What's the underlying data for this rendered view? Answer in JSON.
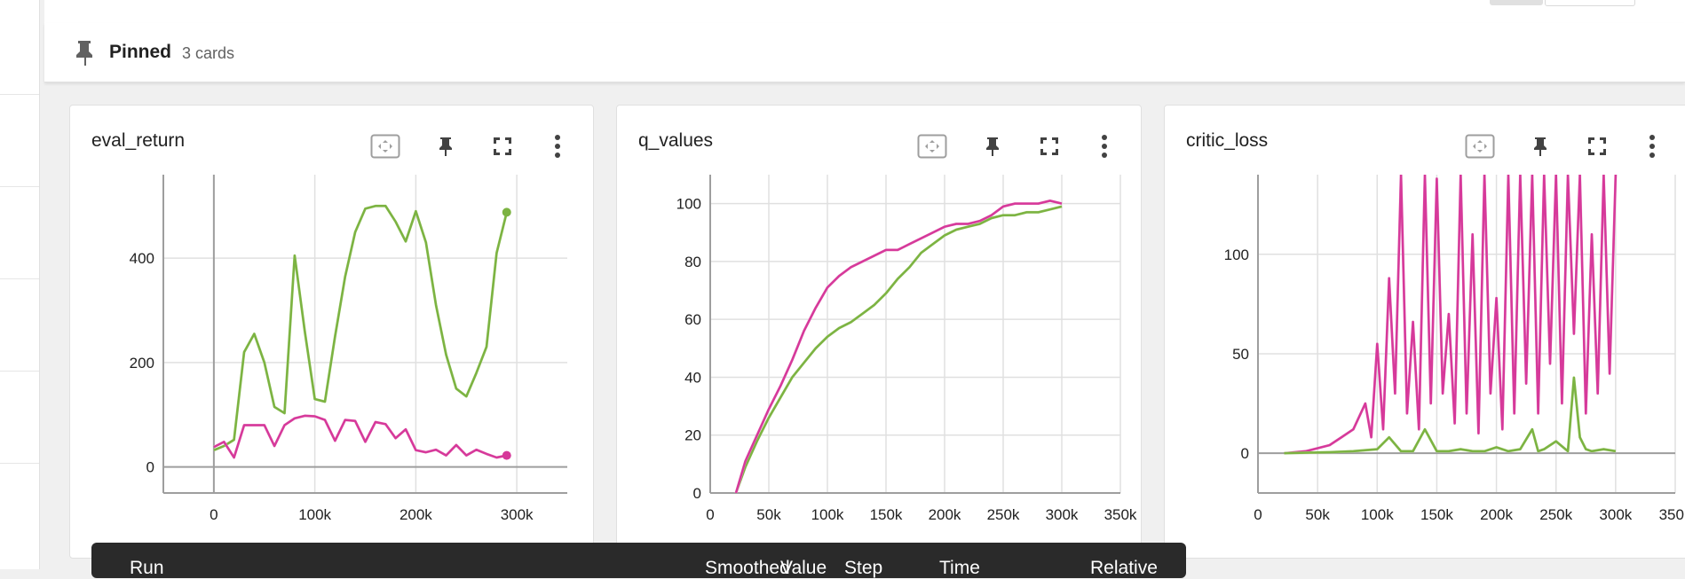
{
  "pinned": {
    "title": "Pinned",
    "count": "3 cards"
  },
  "tooltip": {
    "col_run": "Run",
    "col_smoothed": "Smoothed",
    "col_value": "Value",
    "col_step": "Step",
    "col_time": "Time",
    "col_relative": "Relative"
  },
  "colors": {
    "green": "#7cb342",
    "green_light": "#c5e1a5",
    "pink": "#d6399a",
    "pink_light": "#f0b3d8"
  },
  "cards": [
    {
      "title": "eval_return"
    },
    {
      "title": "q_values"
    },
    {
      "title": "critic_loss"
    }
  ],
  "chart_data": [
    {
      "type": "line",
      "title": "eval_return",
      "xticks": [
        "0",
        "100k",
        "200k",
        "300k"
      ],
      "yticks": [
        "0",
        "200",
        "400"
      ],
      "xlim": [
        -50000,
        350000
      ],
      "ylim": [
        -50,
        560
      ],
      "series": [
        {
          "color": "green",
          "x": [
            0,
            10000,
            20000,
            30000,
            40000,
            50000,
            60000,
            70000,
            80000,
            90000,
            100000,
            110000,
            120000,
            130000,
            140000,
            150000,
            160000,
            170000,
            180000,
            190000,
            200000,
            210000,
            220000,
            230000,
            240000,
            250000,
            260000,
            270000,
            280000,
            290000
          ],
          "y": [
            32,
            40,
            52,
            220,
            255,
            200,
            115,
            103,
            405,
            260,
            130,
            125,
            250,
            365,
            450,
            495,
            500,
            500,
            470,
            432,
            490,
            430,
            310,
            215,
            150,
            135,
            180,
            230,
            410,
            488
          ]
        },
        {
          "color": "pink",
          "x": [
            0,
            10000,
            20000,
            30000,
            40000,
            50000,
            60000,
            70000,
            80000,
            90000,
            100000,
            110000,
            120000,
            130000,
            140000,
            150000,
            160000,
            170000,
            180000,
            190000,
            200000,
            210000,
            220000,
            230000,
            240000,
            250000,
            260000,
            270000,
            280000,
            290000
          ],
          "y": [
            38,
            48,
            18,
            80,
            80,
            80,
            40,
            80,
            93,
            98,
            97,
            90,
            50,
            90,
            88,
            48,
            86,
            82,
            55,
            72,
            32,
            28,
            33,
            22,
            42,
            22,
            33,
            25,
            18,
            22
          ]
        }
      ]
    },
    {
      "type": "line",
      "title": "q_values",
      "xticks": [
        "0",
        "50k",
        "100k",
        "150k",
        "200k",
        "250k",
        "300k",
        "350k"
      ],
      "yticks": [
        "0",
        "20",
        "40",
        "60",
        "80",
        "100"
      ],
      "xlim": [
        0,
        350000
      ],
      "ylim": [
        0,
        110
      ],
      "series": [
        {
          "color": "green",
          "x": [
            22000,
            30000,
            40000,
            50000,
            60000,
            70000,
            80000,
            90000,
            100000,
            110000,
            120000,
            130000,
            140000,
            150000,
            160000,
            170000,
            180000,
            190000,
            200000,
            210000,
            220000,
            230000,
            240000,
            250000,
            260000,
            270000,
            280000,
            290000,
            300000
          ],
          "y": [
            0,
            9,
            18,
            26,
            33,
            40,
            45,
            50,
            54,
            57,
            59,
            62,
            65,
            69,
            74,
            78,
            83,
            86,
            89,
            91,
            92,
            93,
            95,
            96,
            96,
            97,
            97,
            98,
            99
          ]
        },
        {
          "color": "pink",
          "x": [
            22000,
            30000,
            40000,
            50000,
            60000,
            70000,
            80000,
            90000,
            100000,
            110000,
            120000,
            130000,
            140000,
            150000,
            160000,
            170000,
            180000,
            190000,
            200000,
            210000,
            220000,
            230000,
            240000,
            250000,
            260000,
            270000,
            280000,
            290000,
            300000
          ],
          "y": [
            0,
            11,
            20,
            29,
            37,
            46,
            56,
            64,
            71,
            75,
            78,
            80,
            82,
            84,
            84,
            86,
            88,
            90,
            92,
            93,
            93,
            94,
            96,
            99,
            100,
            100,
            100,
            101,
            100
          ]
        }
      ]
    },
    {
      "type": "line",
      "title": "critic_loss",
      "xticks": [
        "0",
        "50k",
        "100k",
        "150k",
        "200k",
        "250k",
        "300k",
        "350k"
      ],
      "yticks": [
        "0",
        "50",
        "100"
      ],
      "xlim": [
        0,
        350000
      ],
      "ylim": [
        -20,
        140
      ],
      "series": [
        {
          "color": "pink",
          "x": [
            22000,
            40000,
            60000,
            70000,
            80000,
            90000,
            95000,
            100000,
            105000,
            110000,
            115000,
            120000,
            125000,
            130000,
            135000,
            140000,
            145000,
            150000,
            155000,
            160000,
            165000,
            170000,
            175000,
            180000,
            185000,
            190000,
            195000,
            200000,
            205000,
            210000,
            215000,
            220000,
            225000,
            230000,
            235000,
            240000,
            245000,
            250000,
            255000,
            260000,
            265000,
            270000,
            275000,
            280000,
            285000,
            290000,
            295000,
            300000
          ],
          "y": [
            0,
            1,
            4,
            8,
            12,
            25,
            8,
            55,
            12,
            88,
            30,
            140,
            20,
            66,
            12,
            140,
            25,
            138,
            30,
            70,
            15,
            140,
            20,
            110,
            10,
            140,
            30,
            78,
            12,
            140,
            20,
            140,
            35,
            140,
            20,
            140,
            45,
            140,
            25,
            140,
            60,
            140,
            20,
            110,
            30,
            140,
            40,
            140
          ]
        },
        {
          "color": "green",
          "x": [
            22000,
            60000,
            80000,
            100000,
            110000,
            120000,
            130000,
            140000,
            150000,
            160000,
            170000,
            180000,
            190000,
            200000,
            210000,
            220000,
            230000,
            235000,
            240000,
            250000,
            260000,
            265000,
            270000,
            275000,
            280000,
            290000,
            300000
          ],
          "y": [
            0,
            0.5,
            1,
            2,
            8,
            1,
            1,
            12,
            1,
            1,
            2,
            1,
            1,
            3,
            1,
            2,
            12,
            1,
            2,
            6,
            1,
            38,
            8,
            2,
            1,
            2,
            1
          ]
        }
      ]
    }
  ]
}
